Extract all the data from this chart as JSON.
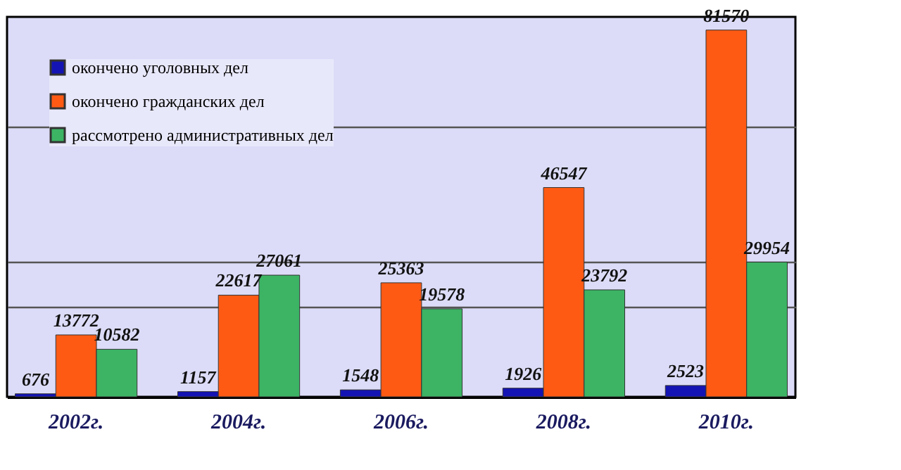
{
  "chart_data": {
    "type": "bar",
    "categories": [
      "2002г.",
      "2004г.",
      "2006г.",
      "2008г.",
      "2010г."
    ],
    "series": [
      {
        "name": "окончено уголовных дел",
        "color": "#1414b4",
        "values": [
          676,
          1157,
          1548,
          1926,
          2523
        ]
      },
      {
        "name": "окончено гражданских дел",
        "color": "#ff5a14",
        "values": [
          13772,
          22617,
          25363,
          46547,
          81570
        ]
      },
      {
        "name": "рассмотрено административных дел",
        "color": "#3cb464",
        "values": [
          10582,
          27061,
          19578,
          23792,
          29954
        ]
      }
    ],
    "ylim": [
      0,
      84500
    ],
    "yticks": [
      {
        "value": 20000,
        "label": null
      },
      {
        "value": 30000,
        "label": null
      },
      {
        "value": 60000,
        "label": null
      }
    ],
    "tick_labels": "x",
    "grid": "y",
    "legend": "top left",
    "data_labels": true
  }
}
